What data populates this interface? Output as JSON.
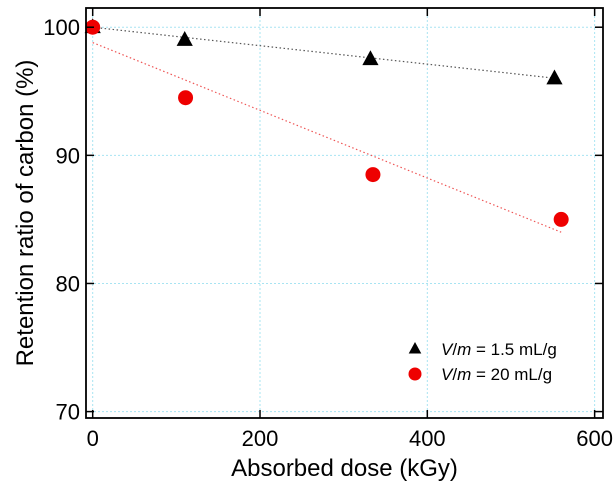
{
  "chart_data": {
    "type": "scatter",
    "title": "",
    "xlabel": "Absorbed dose (kGy)",
    "ylabel": "Retention ratio of carbon (%)",
    "xlim": [
      -8,
      610
    ],
    "ylim": [
      69.5,
      101.5
    ],
    "xticks": [
      0,
      200,
      400,
      600
    ],
    "yticks": [
      70,
      80,
      90,
      100
    ],
    "grid": true,
    "legend_position": "bottom-right",
    "series": [
      {
        "name_italic": "V",
        "name_sep": "/",
        "name_italic2": "m",
        "name_rest": " = 1.5 mL/g",
        "marker": "triangle",
        "color": "#000000",
        "x": [
          0,
          110,
          332,
          552
        ],
        "y": [
          100,
          99,
          97.5,
          96
        ],
        "fit": {
          "x": [
            0,
            555
          ],
          "y": [
            100,
            96
          ],
          "color": "#555555"
        }
      },
      {
        "name_italic": "V",
        "name_sep": "/",
        "name_italic2": "m",
        "name_rest": " = 20 mL/g",
        "marker": "circle",
        "color": "#ee0000",
        "x": [
          0,
          111,
          335,
          560
        ],
        "y": [
          100,
          94.5,
          88.5,
          85
        ],
        "fit": {
          "x": [
            0,
            560
          ],
          "y": [
            98.8,
            84
          ],
          "color": "#ee5555"
        }
      }
    ]
  }
}
